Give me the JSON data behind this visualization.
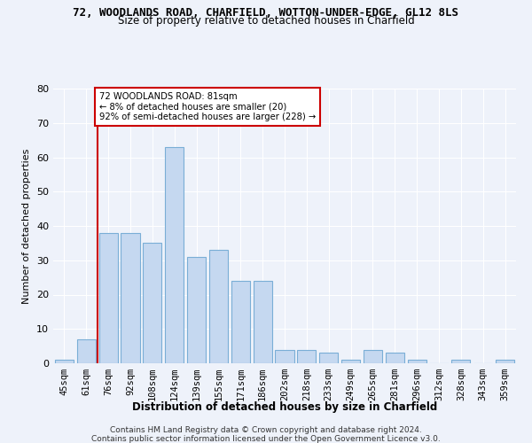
{
  "title": "72, WOODLANDS ROAD, CHARFIELD, WOTTON-UNDER-EDGE, GL12 8LS",
  "subtitle": "Size of property relative to detached houses in Charfield",
  "xlabel": "Distribution of detached houses by size in Charfield",
  "ylabel": "Number of detached properties",
  "bar_color": "#c5d8f0",
  "bar_edge_color": "#7aaed6",
  "categories": [
    "45sqm",
    "61sqm",
    "76sqm",
    "92sqm",
    "108sqm",
    "124sqm",
    "139sqm",
    "155sqm",
    "171sqm",
    "186sqm",
    "202sqm",
    "218sqm",
    "233sqm",
    "249sqm",
    "265sqm",
    "281sqm",
    "296sqm",
    "312sqm",
    "328sqm",
    "343sqm",
    "359sqm"
  ],
  "values": [
    1,
    7,
    38,
    38,
    35,
    63,
    31,
    33,
    24,
    24,
    4,
    4,
    3,
    1,
    4,
    3,
    1,
    0,
    1,
    0,
    1
  ],
  "ylim": [
    0,
    80
  ],
  "yticks": [
    0,
    10,
    20,
    30,
    40,
    50,
    60,
    70,
    80
  ],
  "vline_x": 1.5,
  "vline_color": "#cc0000",
  "annotation_text": "72 WOODLANDS ROAD: 81sqm\n← 8% of detached houses are smaller (20)\n92% of semi-detached houses are larger (228) →",
  "annotation_box_color": "#ffffff",
  "annotation_box_edge": "#cc0000",
  "footer_line1": "Contains HM Land Registry data © Crown copyright and database right 2024.",
  "footer_line2": "Contains public sector information licensed under the Open Government Licence v3.0.",
  "background_color": "#eef2fa",
  "grid_color": "#ffffff"
}
